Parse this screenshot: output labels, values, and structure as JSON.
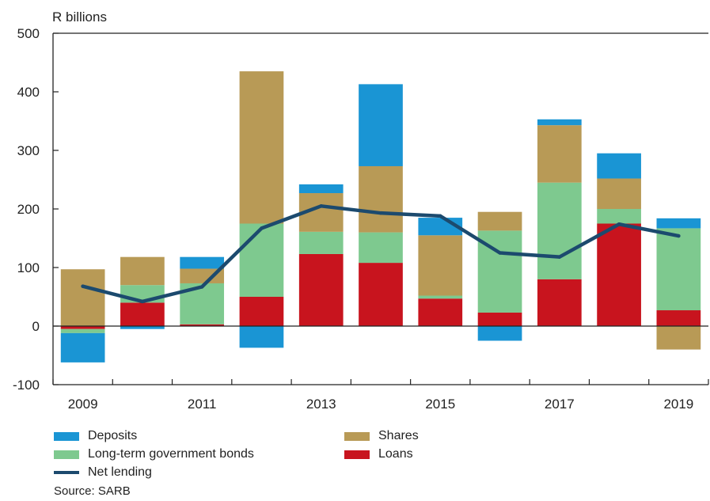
{
  "chart_data": {
    "type": "bar",
    "stacked": true,
    "ylabel": "R billions",
    "ylim": [
      -100,
      500
    ],
    "yticks": [
      500,
      400,
      300,
      200,
      100,
      0,
      -100
    ],
    "categories": [
      "2009",
      "2010",
      "2011",
      "2012",
      "2013",
      "2014",
      "2015",
      "2016",
      "2017",
      "2018",
      "2019"
    ],
    "xtick_labels": [
      "2009",
      "",
      "2011",
      "",
      "2013",
      "",
      "2015",
      "",
      "2017",
      "",
      "2019"
    ],
    "grid": false,
    "legend_position": "bottom",
    "series": [
      {
        "name": "Loans",
        "kind": "bar",
        "color": "#c8141e",
        "values": [
          -5,
          40,
          3,
          50,
          123,
          108,
          47,
          23,
          80,
          175,
          27
        ]
      },
      {
        "name": "Long-term government bonds",
        "kind": "bar",
        "color": "#7ec98f",
        "values": [
          -7,
          30,
          70,
          125,
          38,
          52,
          5,
          140,
          165,
          25,
          140
        ]
      },
      {
        "name": "Shares",
        "kind": "bar",
        "color": "#b89a56",
        "values": [
          97,
          48,
          25,
          260,
          66,
          113,
          103,
          32,
          98,
          52,
          -40
        ]
      },
      {
        "name": "Deposits",
        "kind": "bar",
        "color": "#1a95d4",
        "values": [
          -50,
          -5,
          20,
          -37,
          15,
          140,
          30,
          -25,
          10,
          43,
          17
        ]
      },
      {
        "name": "Net lending",
        "kind": "line",
        "color": "#1c4a6e",
        "values": [
          68,
          42,
          67,
          167,
          205,
          193,
          188,
          125,
          118,
          174,
          154
        ]
      }
    ]
  },
  "legend": {
    "deposits": "Deposits",
    "bonds": "Long-term government bonds",
    "net_lending": "Net lending",
    "shares": "Shares",
    "loans": "Loans"
  },
  "source": "Source: SARB"
}
